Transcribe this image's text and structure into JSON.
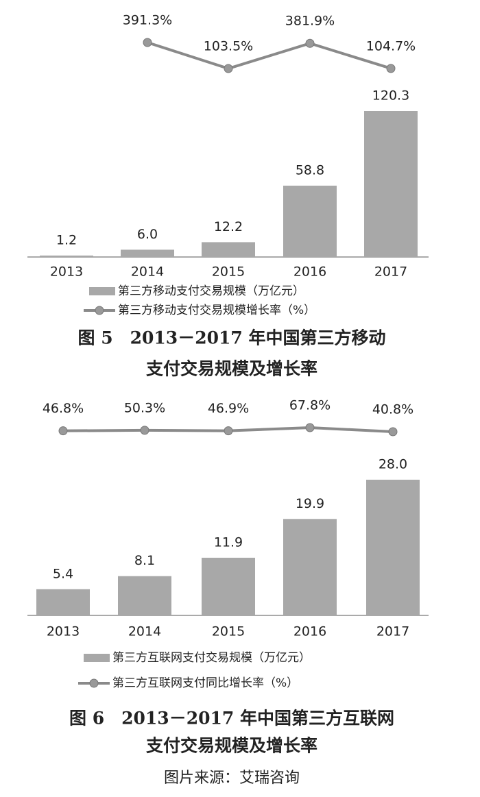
{
  "chart_data": [
    {
      "type": "bar",
      "categories": [
        "2013",
        "2014",
        "2015",
        "2016",
        "2017"
      ],
      "series": [
        {
          "name": "第三方移动支付交易规模（万亿元）",
          "color": "#a8a8a8",
          "values": [
            1.2,
            6,
            12.2,
            58.8,
            120.3
          ],
          "value_labels": [
            "1.2",
            "6.0",
            "12.2",
            "58.8",
            "120.3"
          ]
        },
        {
          "name": "第三方移动支付交易规模增长率（%）",
          "type": "line",
          "color": "#8a8a8a",
          "values": [
            null,
            391.3,
            103.5,
            381.9,
            104.7
          ],
          "value_labels": [
            null,
            "391.3%",
            "103.5%",
            "381.9%",
            "104.7%"
          ]
        }
      ],
      "caption": [
        "图 5　2013－2017 年中国第三方移动",
        "支付交易规模及增长率"
      ]
    },
    {
      "type": "bar",
      "categories": [
        "2013",
        "2014",
        "2015",
        "2016",
        "2017"
      ],
      "series": [
        {
          "name": "第三方互联网支付交易规模（万亿元）",
          "color": "#a8a8a8",
          "values": [
            5.4,
            8.1,
            11.9,
            19.9,
            28
          ],
          "value_labels": [
            "5.4",
            "8.1",
            "11.9",
            "19.9",
            "28.0"
          ]
        },
        {
          "name": "第三方互联网支付同比增长率（%）",
          "type": "line",
          "color": "#8a8a8a",
          "values": [
            46.8,
            50.3,
            46.9,
            67.8,
            40.8
          ],
          "value_labels": [
            "46.8%",
            "50.3%",
            "46.9%",
            "67.8%",
            "40.8%"
          ]
        }
      ],
      "caption": [
        "图 6　2013－2017 年中国第三方互联网",
        "支付交易规模及增长率"
      ]
    }
  ],
  "source": "图片来源：艾瑞咨询"
}
